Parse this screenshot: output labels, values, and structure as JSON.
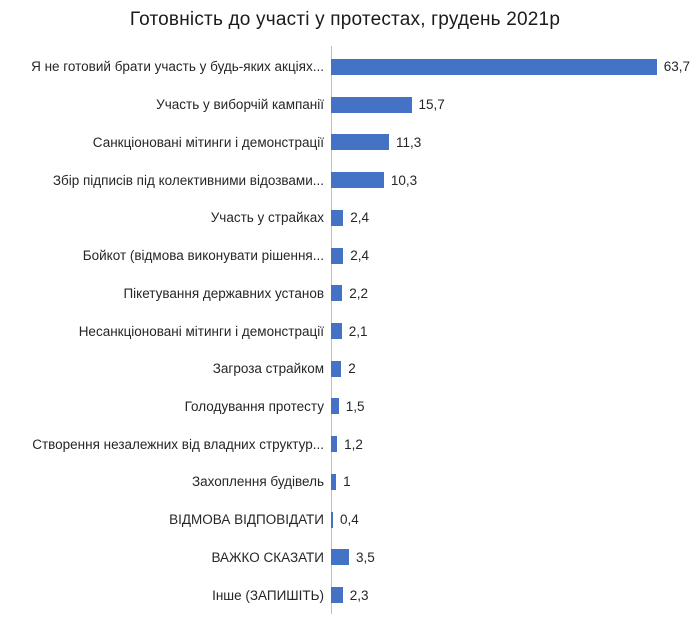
{
  "title": "Готовність до участі у протестах, грудень 2021р",
  "chart_data": {
    "type": "bar",
    "orientation": "horizontal",
    "title": "Готовність до участі у протестах, грудень 2021р",
    "categories": [
      "Я не готовий брати участь у будь-яких акціях...",
      "Участь у виборчій кампанії",
      "Санкціоновані мітинги і демонстрації",
      "Збір підписів під колективними відозвами...",
      "Участь у страйках",
      "Бойкот (відмова виконувати рішення...",
      "Пікетування державних установ",
      "Несанкціоновані мітинги і демонстрації",
      "Загроза страйком",
      "Голодування протесту",
      "Створення незалежних від владних структур...",
      "Захоплення будівель",
      "ВІДМОВА ВІДПОВІДАТИ",
      "ВАЖКО СКАЗАТИ",
      "Інше (ЗАПИШІТЬ)"
    ],
    "values": [
      63.7,
      15.7,
      11.3,
      10.3,
      2.4,
      2.4,
      2.2,
      2.1,
      2,
      1.5,
      1.2,
      1,
      0.4,
      3.5,
      2.3
    ],
    "value_labels": [
      "63,7",
      "15,7",
      "11,3",
      "10,3",
      "2,4",
      "2,4",
      "2,2",
      "2,1",
      "2",
      "1,5",
      "1,2",
      "1",
      "0,4",
      "3,5",
      "2,3"
    ],
    "xlabel": "",
    "ylabel": "",
    "xlim": [
      0,
      70
    ],
    "bar_color": "#4472c4",
    "axis_line_color": "#bfbfbf",
    "grid": false,
    "legend": false,
    "value_labels_position": "right-of-bar"
  }
}
